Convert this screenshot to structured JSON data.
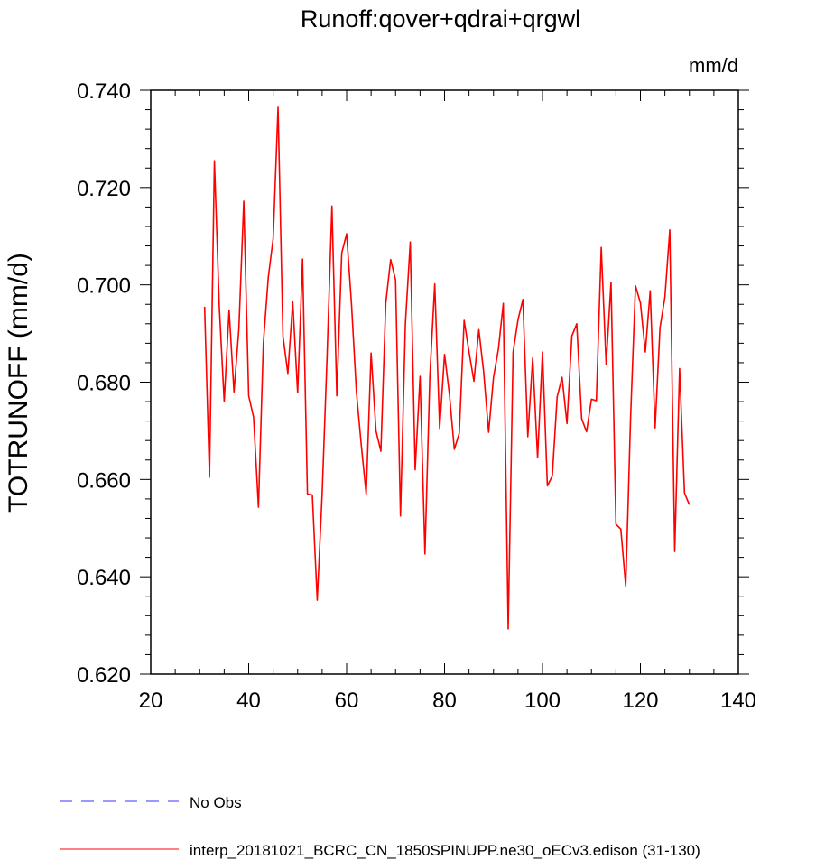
{
  "chart_data": {
    "type": "line",
    "title": "Runoff:qover+qdrai+qrgwl",
    "units": "mm/d",
    "xlabel": "",
    "ylabel": "TOTRUNOFF  (mm/d)",
    "xlim": [
      20,
      140
    ],
    "ylim": [
      0.62,
      0.74
    ],
    "x_ticks": [
      20,
      40,
      60,
      80,
      100,
      120,
      140
    ],
    "x_tick_labels": [
      "20",
      "40",
      "60",
      "80",
      "100",
      "120",
      "140"
    ],
    "y_ticks": [
      0.62,
      0.64,
      0.66,
      0.68,
      0.7,
      0.72,
      0.74
    ],
    "y_tick_labels": [
      "0.620",
      "0.640",
      "0.660",
      "0.680",
      "0.700",
      "0.720",
      "0.740"
    ],
    "grid": false,
    "legend_position": "bottom-left",
    "series": [
      {
        "name": "interp_20181021_BCRC_CN_1850SPINUPP.ne30_oECv3.edison (31-130)",
        "color": "#ff0000",
        "style": "solid",
        "x": [
          31,
          32,
          33,
          34,
          35,
          36,
          37,
          38,
          39,
          40,
          41,
          42,
          43,
          44,
          45,
          46,
          47,
          48,
          49,
          50,
          51,
          52,
          53,
          54,
          55,
          56,
          57,
          58,
          59,
          60,
          61,
          62,
          63,
          64,
          65,
          66,
          67,
          68,
          69,
          70,
          71,
          72,
          73,
          74,
          75,
          76,
          77,
          78,
          79,
          80,
          81,
          82,
          83,
          84,
          85,
          86,
          87,
          88,
          89,
          90,
          91,
          92,
          93,
          94,
          95,
          96,
          97,
          98,
          99,
          100,
          101,
          102,
          103,
          104,
          105,
          106,
          107,
          108,
          109,
          110,
          111,
          112,
          113,
          114,
          115,
          116,
          117,
          118,
          119,
          120,
          121,
          122,
          123,
          124,
          125,
          126,
          127,
          128,
          129,
          130
        ],
        "values": [
          0.6955,
          0.6605,
          0.7255,
          0.6955,
          0.676,
          0.6948,
          0.678,
          0.691,
          0.7172,
          0.6772,
          0.6728,
          0.6543,
          0.688,
          0.7015,
          0.7095,
          0.7365,
          0.6895,
          0.6818,
          0.6965,
          0.6778,
          0.7053,
          0.657,
          0.6568,
          0.6352,
          0.657,
          0.685,
          0.7162,
          0.6772,
          0.7065,
          0.7105,
          0.696,
          0.678,
          0.667,
          0.657,
          0.686,
          0.67,
          0.6658,
          0.6963,
          0.7052,
          0.701,
          0.6525,
          0.692,
          0.7088,
          0.662,
          0.6812,
          0.6447,
          0.6812,
          0.7002,
          0.6705,
          0.6857,
          0.6775,
          0.6662,
          0.6695,
          0.6927,
          0.6862,
          0.6802,
          0.6908,
          0.682,
          0.6697,
          0.681,
          0.6868,
          0.6962,
          0.6293,
          0.6862,
          0.6928,
          0.697,
          0.6688,
          0.685,
          0.6645,
          0.6862,
          0.6587,
          0.6607,
          0.677,
          0.681,
          0.6715,
          0.6895,
          0.692,
          0.6725,
          0.6698,
          0.6765,
          0.6762,
          0.7077,
          0.6837,
          0.7005,
          0.6508,
          0.6498,
          0.6381,
          0.673,
          0.6998,
          0.6963,
          0.6862,
          0.6988,
          0.6706,
          0.6912,
          0.6975,
          0.7113,
          0.6452,
          0.6828,
          0.6572,
          0.6548
        ]
      },
      {
        "name": "No Obs",
        "color": "#3333ff",
        "style": "dashed",
        "x": [],
        "values": []
      }
    ]
  }
}
